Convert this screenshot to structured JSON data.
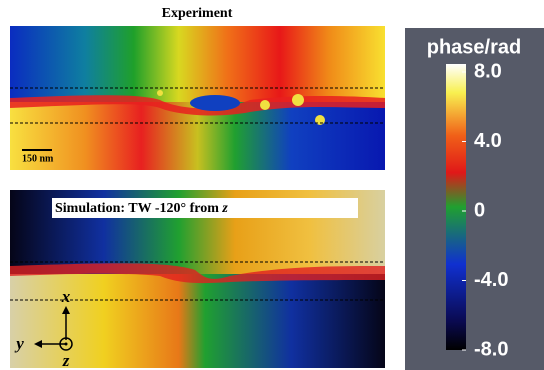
{
  "panels": [
    {
      "title": "Experiment",
      "scale_bar": "150 nm"
    },
    {
      "title": "Simulation: TW -120° from ",
      "title_symbol": "z",
      "axes": {
        "x": "x",
        "y": "y",
        "z": "z"
      }
    }
  ],
  "colorbar": {
    "title": "phase/rad",
    "ticks": [
      "8.0",
      "4.0",
      "0",
      "-4.0",
      "-8.0"
    ]
  }
}
